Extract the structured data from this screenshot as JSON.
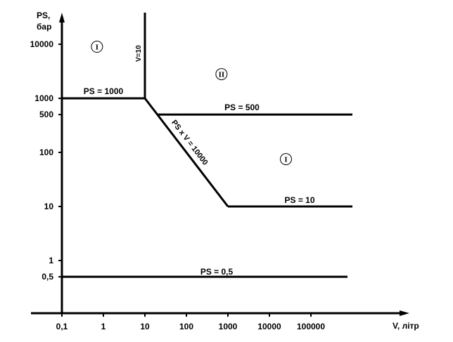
{
  "chart_data": {
    "type": "line",
    "x_axis": {
      "label": "V, літр",
      "scale": "log",
      "ticks": [
        {
          "value": 0.1,
          "label": "0,1"
        },
        {
          "value": 1,
          "label": "1"
        },
        {
          "value": 10,
          "label": "10"
        },
        {
          "value": 100,
          "label": "100"
        },
        {
          "value": 1000,
          "label": "1000"
        },
        {
          "value": 10000,
          "label": "10000"
        },
        {
          "value": 100000,
          "label": "100000"
        }
      ]
    },
    "y_axis": {
      "label_line1": "PS,",
      "label_line2": "бар",
      "scale": "log",
      "ticks": [
        {
          "value": 0.5,
          "label": "0,5"
        },
        {
          "value": 1,
          "label": "1"
        },
        {
          "value": 10,
          "label": "10"
        },
        {
          "value": 100,
          "label": "100"
        },
        {
          "value": 500,
          "label": "500"
        },
        {
          "value": 1000,
          "label": "1000"
        },
        {
          "value": 10000,
          "label": "10000"
        }
      ]
    },
    "boundaries": [
      {
        "id": "ps-1000",
        "label": "PS = 1000",
        "points": [
          [
            0.1,
            1000
          ],
          [
            10,
            1000
          ]
        ]
      },
      {
        "id": "v-10",
        "label": "V=10",
        "points": [
          [
            10,
            1000
          ],
          [
            10,
            50000
          ]
        ]
      },
      {
        "id": "ps-v-10000",
        "label": "PS x V = 10000",
        "points": [
          [
            10,
            1000
          ],
          [
            1000,
            10
          ]
        ]
      },
      {
        "id": "ps-500",
        "label": "PS = 500",
        "points": [
          [
            20,
            500
          ],
          [
            1000000,
            500
          ]
        ]
      },
      {
        "id": "ps-10",
        "label": "PS = 10",
        "points": [
          [
            1000,
            10
          ],
          [
            1000000,
            10
          ]
        ]
      },
      {
        "id": "ps-0-5",
        "label": "PS = 0,5",
        "points": [
          [
            0.1,
            0.5
          ],
          [
            800000,
            0.5
          ]
        ]
      }
    ],
    "regions": [
      {
        "id": "region-upper-left",
        "label": "I",
        "x": 0.7,
        "y": 9000
      },
      {
        "id": "region-upper-middle",
        "label": "II",
        "x": 700,
        "y": 2800
      },
      {
        "id": "region-right",
        "label": "I",
        "x": 25000,
        "y": 75
      }
    ]
  }
}
